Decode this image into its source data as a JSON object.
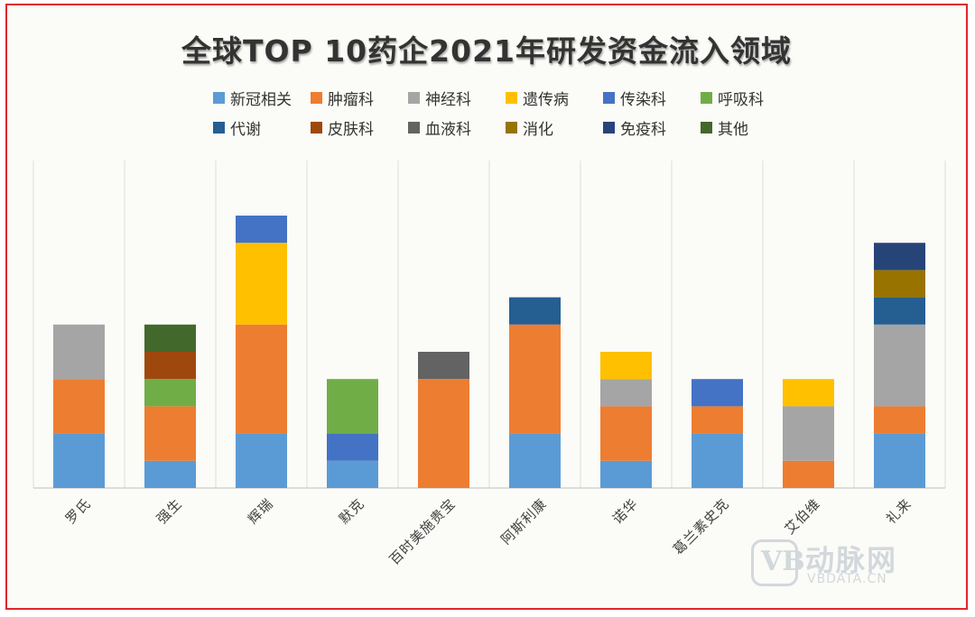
{
  "chart_data": {
    "type": "bar",
    "stacked": true,
    "title": "全球TOP 10药企2021年研发资金流入领域",
    "xlabel": "",
    "ylabel": "",
    "ylim": [
      0,
      12
    ],
    "grid": "vertical",
    "legend_position": "top",
    "categories": [
      "罗氏",
      "强生",
      "辉瑞",
      "默克",
      "百时美施贵宝",
      "阿斯利康",
      "诺华",
      "葛兰素史克",
      "艾伯维",
      "礼来"
    ],
    "series": [
      {
        "name": "新冠相关",
        "color": "#5B9BD5",
        "values": [
          2,
          1,
          2,
          1,
          0,
          2,
          1,
          2,
          0,
          2
        ]
      },
      {
        "name": "肿瘤科",
        "color": "#ED7D31",
        "values": [
          2,
          2,
          4,
          0,
          4,
          4,
          2,
          1,
          1,
          1
        ]
      },
      {
        "name": "神经科",
        "color": "#A5A5A5",
        "values": [
          2,
          0,
          0,
          0,
          0,
          0,
          1,
          0,
          2,
          3
        ]
      },
      {
        "name": "遗传病",
        "color": "#FFC000",
        "values": [
          0,
          0,
          3,
          0,
          0,
          0,
          1,
          0,
          1,
          0
        ]
      },
      {
        "name": "传染科",
        "color": "#4472C4",
        "values": [
          0,
          0,
          1,
          1,
          0,
          0,
          0,
          1,
          0,
          0
        ]
      },
      {
        "name": "呼吸科",
        "color": "#70AD47",
        "values": [
          0,
          1,
          0,
          2,
          0,
          0,
          0,
          0,
          0,
          0
        ]
      },
      {
        "name": "代谢",
        "color": "#255E91",
        "values": [
          0,
          0,
          0,
          0,
          0,
          1,
          0,
          0,
          0,
          1
        ]
      },
      {
        "name": "皮肤科",
        "color": "#9E480E",
        "values": [
          0,
          1,
          0,
          0,
          0,
          0,
          0,
          0,
          0,
          0
        ]
      },
      {
        "name": "血液科",
        "color": "#636363",
        "values": [
          0,
          0,
          0,
          0,
          1,
          0,
          0,
          0,
          0,
          0
        ]
      },
      {
        "name": "消化",
        "color": "#997300",
        "values": [
          0,
          0,
          0,
          0,
          0,
          0,
          0,
          0,
          0,
          1
        ]
      },
      {
        "name": "免疫科",
        "color": "#264478",
        "values": [
          0,
          0,
          0,
          0,
          0,
          0,
          0,
          0,
          0,
          1
        ]
      },
      {
        "name": "其他",
        "color": "#43682B",
        "values": [
          0,
          1,
          0,
          0,
          0,
          0,
          0,
          0,
          0,
          0
        ]
      }
    ]
  },
  "watermark": {
    "brand": "动脉网",
    "site": "VBDATA.CN",
    "logo_letter": "VB"
  }
}
